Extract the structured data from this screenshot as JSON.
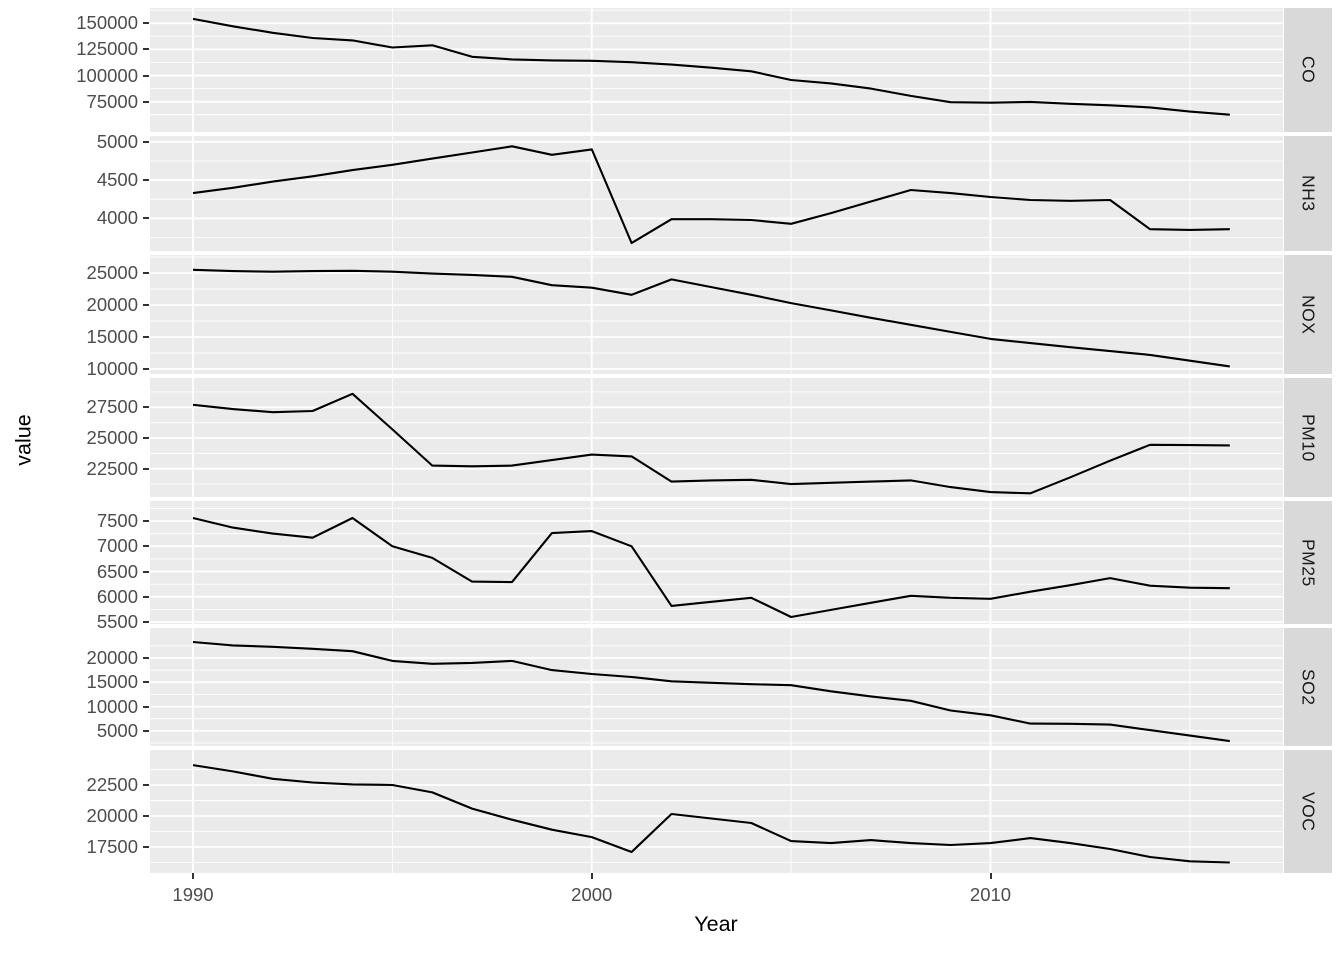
{
  "axes": {
    "x_label": "Year",
    "y_label": "value",
    "x_tick_labels": [
      "1990",
      "2000",
      "2010"
    ]
  },
  "colors": {
    "panel_background": "#EBEBEB",
    "strip_background": "#D9D9D9",
    "gridline": "#FFFFFF",
    "line": "#000000",
    "axis_text": "#4D4D4D",
    "tick_mark": "#333333",
    "strip_text": "#1A1A1A"
  },
  "chart_data": {
    "type": "line",
    "faceted": true,
    "facet_layout": "rows",
    "free_y_scales": true,
    "grid": "on",
    "legend": "none",
    "xlabel": "Year",
    "ylabel": "value",
    "x_major_ticks": [
      1990,
      2000,
      2010
    ],
    "x_minor_ticks": [
      1995,
      2005,
      2015
    ],
    "x": [
      1990,
      1991,
      1992,
      1993,
      1994,
      1995,
      1996,
      1997,
      1998,
      1999,
      2000,
      2001,
      2002,
      2003,
      2004,
      2005,
      2006,
      2007,
      2008,
      2009,
      2010,
      2011,
      2012,
      2013,
      2014,
      2015,
      2016
    ],
    "facets": [
      {
        "label": "CO",
        "yticks": [
          150000,
          125000,
          100000,
          75000
        ],
        "ytick_labels": [
          "150000",
          "125000",
          "100000",
          "75000"
        ],
        "ylim": [
          46000,
          164600
        ],
        "values": [
          154200,
          147100,
          140900,
          135900,
          133600,
          126800,
          128900,
          117900,
          115400,
          114500,
          114100,
          112800,
          110500,
          107500,
          104100,
          95700,
          92500,
          87500,
          80500,
          74500,
          74000,
          74800,
          73000,
          71500,
          69500,
          65500,
          62500
        ]
      },
      {
        "label": "NH3",
        "yticks": [
          5000,
          4500,
          4000
        ],
        "ytick_labels": [
          "5000",
          "4500",
          "4000"
        ],
        "ylim": [
          3575,
          5075
        ],
        "values": [
          4330,
          4400,
          4480,
          4550,
          4630,
          4700,
          4780,
          4860,
          4940,
          4830,
          4900,
          3680,
          3990,
          3990,
          3980,
          3930,
          4070,
          4220,
          4370,
          4330,
          4280,
          4240,
          4230,
          4240,
          3860,
          3850,
          3860
        ]
      },
      {
        "label": "NOX",
        "yticks": [
          25000,
          20000,
          15000,
          10000
        ],
        "ytick_labels": [
          "25000",
          "20000",
          "15000",
          "10000"
        ],
        "ylim": [
          9219,
          27812
        ],
        "values": [
          25500,
          25300,
          25200,
          25300,
          25350,
          25200,
          24900,
          24700,
          24400,
          23100,
          22700,
          21600,
          24000,
          22800,
          21600,
          20300,
          19150,
          18000,
          16900,
          15800,
          14700,
          14050,
          13400,
          12800,
          12200,
          11300,
          10400
        ]
      },
      {
        "label": "PM10",
        "yticks": [
          27500,
          25000,
          22500
        ],
        "ytick_labels": [
          "27500",
          "25000",
          "22500"
        ],
        "ylim": [
          20198,
          29885
        ],
        "values": [
          27700,
          27350,
          27100,
          27200,
          28600,
          25700,
          22750,
          22700,
          22750,
          23200,
          23650,
          23500,
          21450,
          21550,
          21600,
          21250,
          21350,
          21450,
          21550,
          21000,
          20600,
          20500,
          21800,
          23150,
          24450,
          24420,
          24400
        ]
      },
      {
        "label": "PM25",
        "yticks": [
          7500,
          7000,
          6500,
          6000,
          5500
        ],
        "ytick_labels": [
          "7500",
          "7000",
          "6500",
          "6000",
          "5500"
        ],
        "ylim": [
          5461,
          7896
        ],
        "values": [
          7560,
          7370,
          7250,
          7170,
          7560,
          7000,
          6770,
          6300,
          6290,
          7260,
          7300,
          7000,
          5820,
          5900,
          5980,
          5600,
          5740,
          5880,
          6020,
          5980,
          5960,
          6100,
          6230,
          6370,
          6220,
          6180,
          6170
        ]
      },
      {
        "label": "SO2",
        "yticks": [
          20000,
          15000,
          10000,
          5000
        ],
        "ytick_labels": [
          "20000",
          "15000",
          "10000",
          "5000"
        ],
        "ylim": [
          1890,
          26174
        ],
        "values": [
          23300,
          22600,
          22300,
          21900,
          21400,
          19400,
          18800,
          19000,
          19400,
          17500,
          16700,
          16100,
          15200,
          14900,
          14600,
          14400,
          13150,
          12100,
          11200,
          9200,
          8200,
          6500,
          6450,
          6300,
          5170,
          4030,
          2900
        ]
      },
      {
        "label": "VOC",
        "yticks": [
          22500,
          20000,
          17500
        ],
        "ytick_labels": [
          "22500",
          "20000",
          "17500"
        ],
        "ylim": [
          15407,
          25321
        ],
        "values": [
          24100,
          23600,
          23000,
          22700,
          22550,
          22500,
          21900,
          20600,
          19700,
          18900,
          18300,
          17100,
          20160,
          19800,
          19440,
          17980,
          17820,
          18060,
          17820,
          17660,
          17820,
          18220,
          17820,
          17340,
          16700,
          16350,
          16250
        ]
      }
    ]
  }
}
